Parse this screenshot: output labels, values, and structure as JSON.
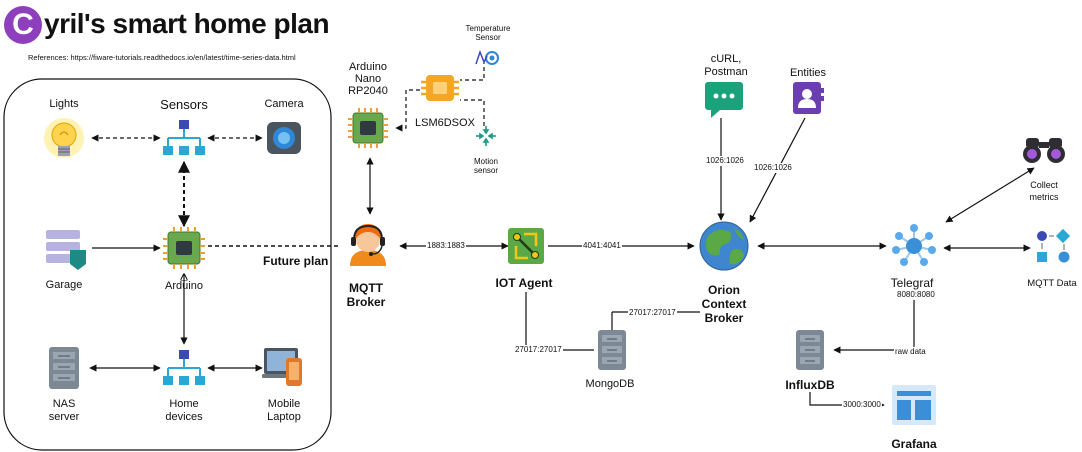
{
  "header": {
    "logo_letter": "C",
    "title": "yril's smart home plan",
    "references": "References: https://fiware-tutorials.readthedocs.io/en/latest/time-series-data.html"
  },
  "home_group": {
    "lights": "Lights",
    "sensors": "Sensors",
    "camera": "Camera",
    "garage": "Garage",
    "arduino": "Arduino",
    "nas_line1": "NAS",
    "nas_line2": "server",
    "home_devices_line1": "Home",
    "home_devices_line2": "devices",
    "mobile_line1": "Mobile",
    "mobile_line2": "Laptop",
    "future_plan": "Future plan"
  },
  "nodes": {
    "nano_line1": "Arduino",
    "nano_line2": "Nano",
    "nano_line3": "RP2040",
    "lsm": "LSM6DSOX",
    "temp_line1": "Temperature",
    "temp_line2": "Sensor",
    "motion_line1": "Motion",
    "motion_line2": "sensor",
    "mqtt_line1": "MQTT",
    "mqtt_line2": "Broker",
    "iot_agent": "IOT Agent",
    "orion_line1": "Orion",
    "orion_line2": "Context",
    "orion_line3": "Broker",
    "curl_line1": "cURL,",
    "curl_line2": "Postman",
    "entities": "Entities",
    "telegraf": "Telegraf",
    "collect_line1": "Collect",
    "collect_line2": "metrics",
    "mqtt_data": "MQTT Data",
    "mongodb": "MongoDB",
    "influxdb": "InfluxDB",
    "grafana": "Grafana"
  },
  "edges": {
    "mqtt_iot": "1883:1883",
    "iot_orion": "4041:4041",
    "curl_orion": "1026:1026",
    "entities_orion": "1026:1026",
    "mongo_iot": "27017:27017",
    "mongo_orion": "27017:27017",
    "telegraf_port": "8080:8080",
    "raw_data": "raw data",
    "grafana_port": "3000:3000"
  },
  "colors": {
    "logo": "#8e3fbd",
    "chip_green": "#6aa84f",
    "iot_green": "#5aa846",
    "chat_teal": "#1aa37a",
    "entities_purple": "#6b3fb0",
    "grafana_blue": "#3b8ed8",
    "server_gray": "#7c8894",
    "bulb_yellow": "#ffd34d",
    "orange_chip": "#f5a623",
    "network_blue": "#29a8d6",
    "telegraf_blue": "#3a90d8"
  },
  "icons": [
    "bulb-icon",
    "network-icon",
    "camera-icon",
    "storage-stack-icon",
    "chip-icon",
    "server-icon",
    "laptop-phone-icon",
    "operator-headset-icon",
    "gateway-icon",
    "globe-icon",
    "chat-icon",
    "contact-book-icon",
    "hub-icon",
    "binoculars-icon",
    "shapes-icon",
    "dashboard-icon",
    "temperature-icon",
    "motion-icon",
    "orange-chip-icon"
  ]
}
